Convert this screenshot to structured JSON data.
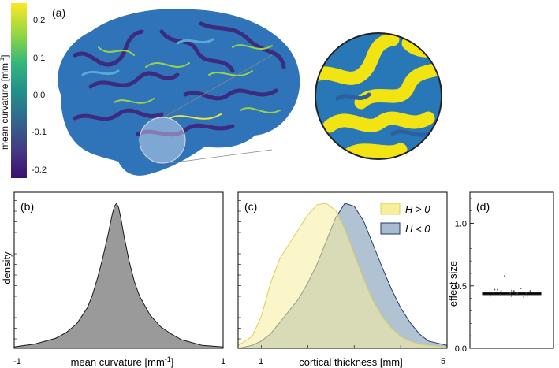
{
  "panel_a": {
    "label": "(a)",
    "colorbar": {
      "title": "mean curvature [mm",
      "title_sup": "-1",
      "title_end": "]",
      "ticks": [
        "0.2",
        "0.1",
        "0.0",
        "-0.1",
        "-0.2"
      ],
      "tick_values": [
        0.2,
        0.1,
        0.0,
        -0.1,
        -0.2
      ],
      "range": [
        -0.22,
        0.25
      ],
      "colors": [
        "#3b0f70",
        "#443a83",
        "#31688e",
        "#21918c",
        "#35b779",
        "#90d743",
        "#fde725"
      ]
    },
    "brain_colors": {
      "base": "#2f73b8",
      "dark": "#3d2b7e",
      "ridge": "#9ad24a",
      "highlight": "#e8e64a"
    },
    "inset_colors": {
      "yellow": "#f2e313",
      "blue": "#2878b8",
      "rim": "#222222"
    }
  },
  "chart_data": [
    {
      "panel": "(b)",
      "type": "area",
      "xlabel": "mean curvature [mm",
      "xlabel_sup": "-1",
      "xlabel_end": "]",
      "ylabel": "density",
      "xlim": [
        -1,
        1
      ],
      "xticks": [
        "-1",
        "1"
      ],
      "xtick_values": [
        -1,
        1
      ],
      "fill": "#9a9a9a",
      "x": [
        -1.0,
        -0.8,
        -0.6,
        -0.5,
        -0.4,
        -0.3,
        -0.25,
        -0.2,
        -0.15,
        -0.1,
        -0.08,
        -0.06,
        -0.04,
        -0.02,
        0.0,
        0.02,
        0.05,
        0.1,
        0.15,
        0.2,
        0.3,
        0.4,
        0.5,
        0.6,
        0.8,
        1.0
      ],
      "y": [
        0.01,
        0.03,
        0.07,
        0.11,
        0.17,
        0.28,
        0.37,
        0.49,
        0.63,
        0.79,
        0.86,
        0.93,
        0.98,
        1.0,
        0.97,
        0.9,
        0.78,
        0.6,
        0.46,
        0.36,
        0.23,
        0.15,
        0.1,
        0.06,
        0.02,
        0.01
      ]
    },
    {
      "panel": "(c)",
      "type": "area",
      "xlabel": "cortical thickness [mm]",
      "xlim": [
        0.5,
        5
      ],
      "xticks": [
        "1",
        "5"
      ],
      "xtick_values": [
        1,
        5
      ],
      "series": [
        {
          "name": "H > 0",
          "color": "#f7ef9c",
          "x": [
            0.5,
            0.8,
            1.0,
            1.2,
            1.4,
            1.6,
            1.8,
            2.0,
            2.2,
            2.4,
            2.6,
            2.8,
            3.0,
            3.2,
            3.4,
            3.6,
            3.8,
            4.0,
            4.2,
            4.4,
            4.6,
            5.0
          ],
          "y": [
            0.02,
            0.08,
            0.22,
            0.45,
            0.62,
            0.72,
            0.82,
            0.92,
            0.99,
            1.0,
            0.95,
            0.82,
            0.65,
            0.48,
            0.33,
            0.22,
            0.14,
            0.08,
            0.05,
            0.03,
            0.02,
            0.01
          ]
        },
        {
          "name": "H < 0",
          "color": "#a9bccd",
          "x": [
            0.5,
            0.8,
            1.0,
            1.2,
            1.4,
            1.6,
            1.8,
            2.0,
            2.2,
            2.4,
            2.6,
            2.8,
            3.0,
            3.2,
            3.4,
            3.6,
            3.8,
            4.0,
            4.2,
            4.4,
            4.6,
            5.0
          ],
          "y": [
            0.0,
            0.02,
            0.05,
            0.1,
            0.18,
            0.26,
            0.34,
            0.45,
            0.58,
            0.74,
            0.9,
            1.0,
            0.98,
            0.88,
            0.72,
            0.56,
            0.41,
            0.28,
            0.18,
            0.1,
            0.05,
            0.02
          ]
        }
      ]
    },
    {
      "panel": "(d)",
      "type": "scatter",
      "ylabel": "effect size",
      "ylim": [
        0.0,
        1.25
      ],
      "yticks": [
        "1.0",
        "0.5",
        "0.0"
      ],
      "ytick_values": [
        1.0,
        0.5,
        0.0
      ],
      "box": {
        "q1": 0.43,
        "median": 0.44,
        "q3": 0.45,
        "whisker_low": 0.41,
        "whisker_high": 0.47
      },
      "points": [
        0.42,
        0.43,
        0.43,
        0.44,
        0.44,
        0.44,
        0.45,
        0.45,
        0.46,
        0.46,
        0.47,
        0.41,
        0.43,
        0.45,
        0.44,
        0.46,
        0.42,
        0.45,
        0.47,
        0.48,
        0.58
      ]
    }
  ]
}
